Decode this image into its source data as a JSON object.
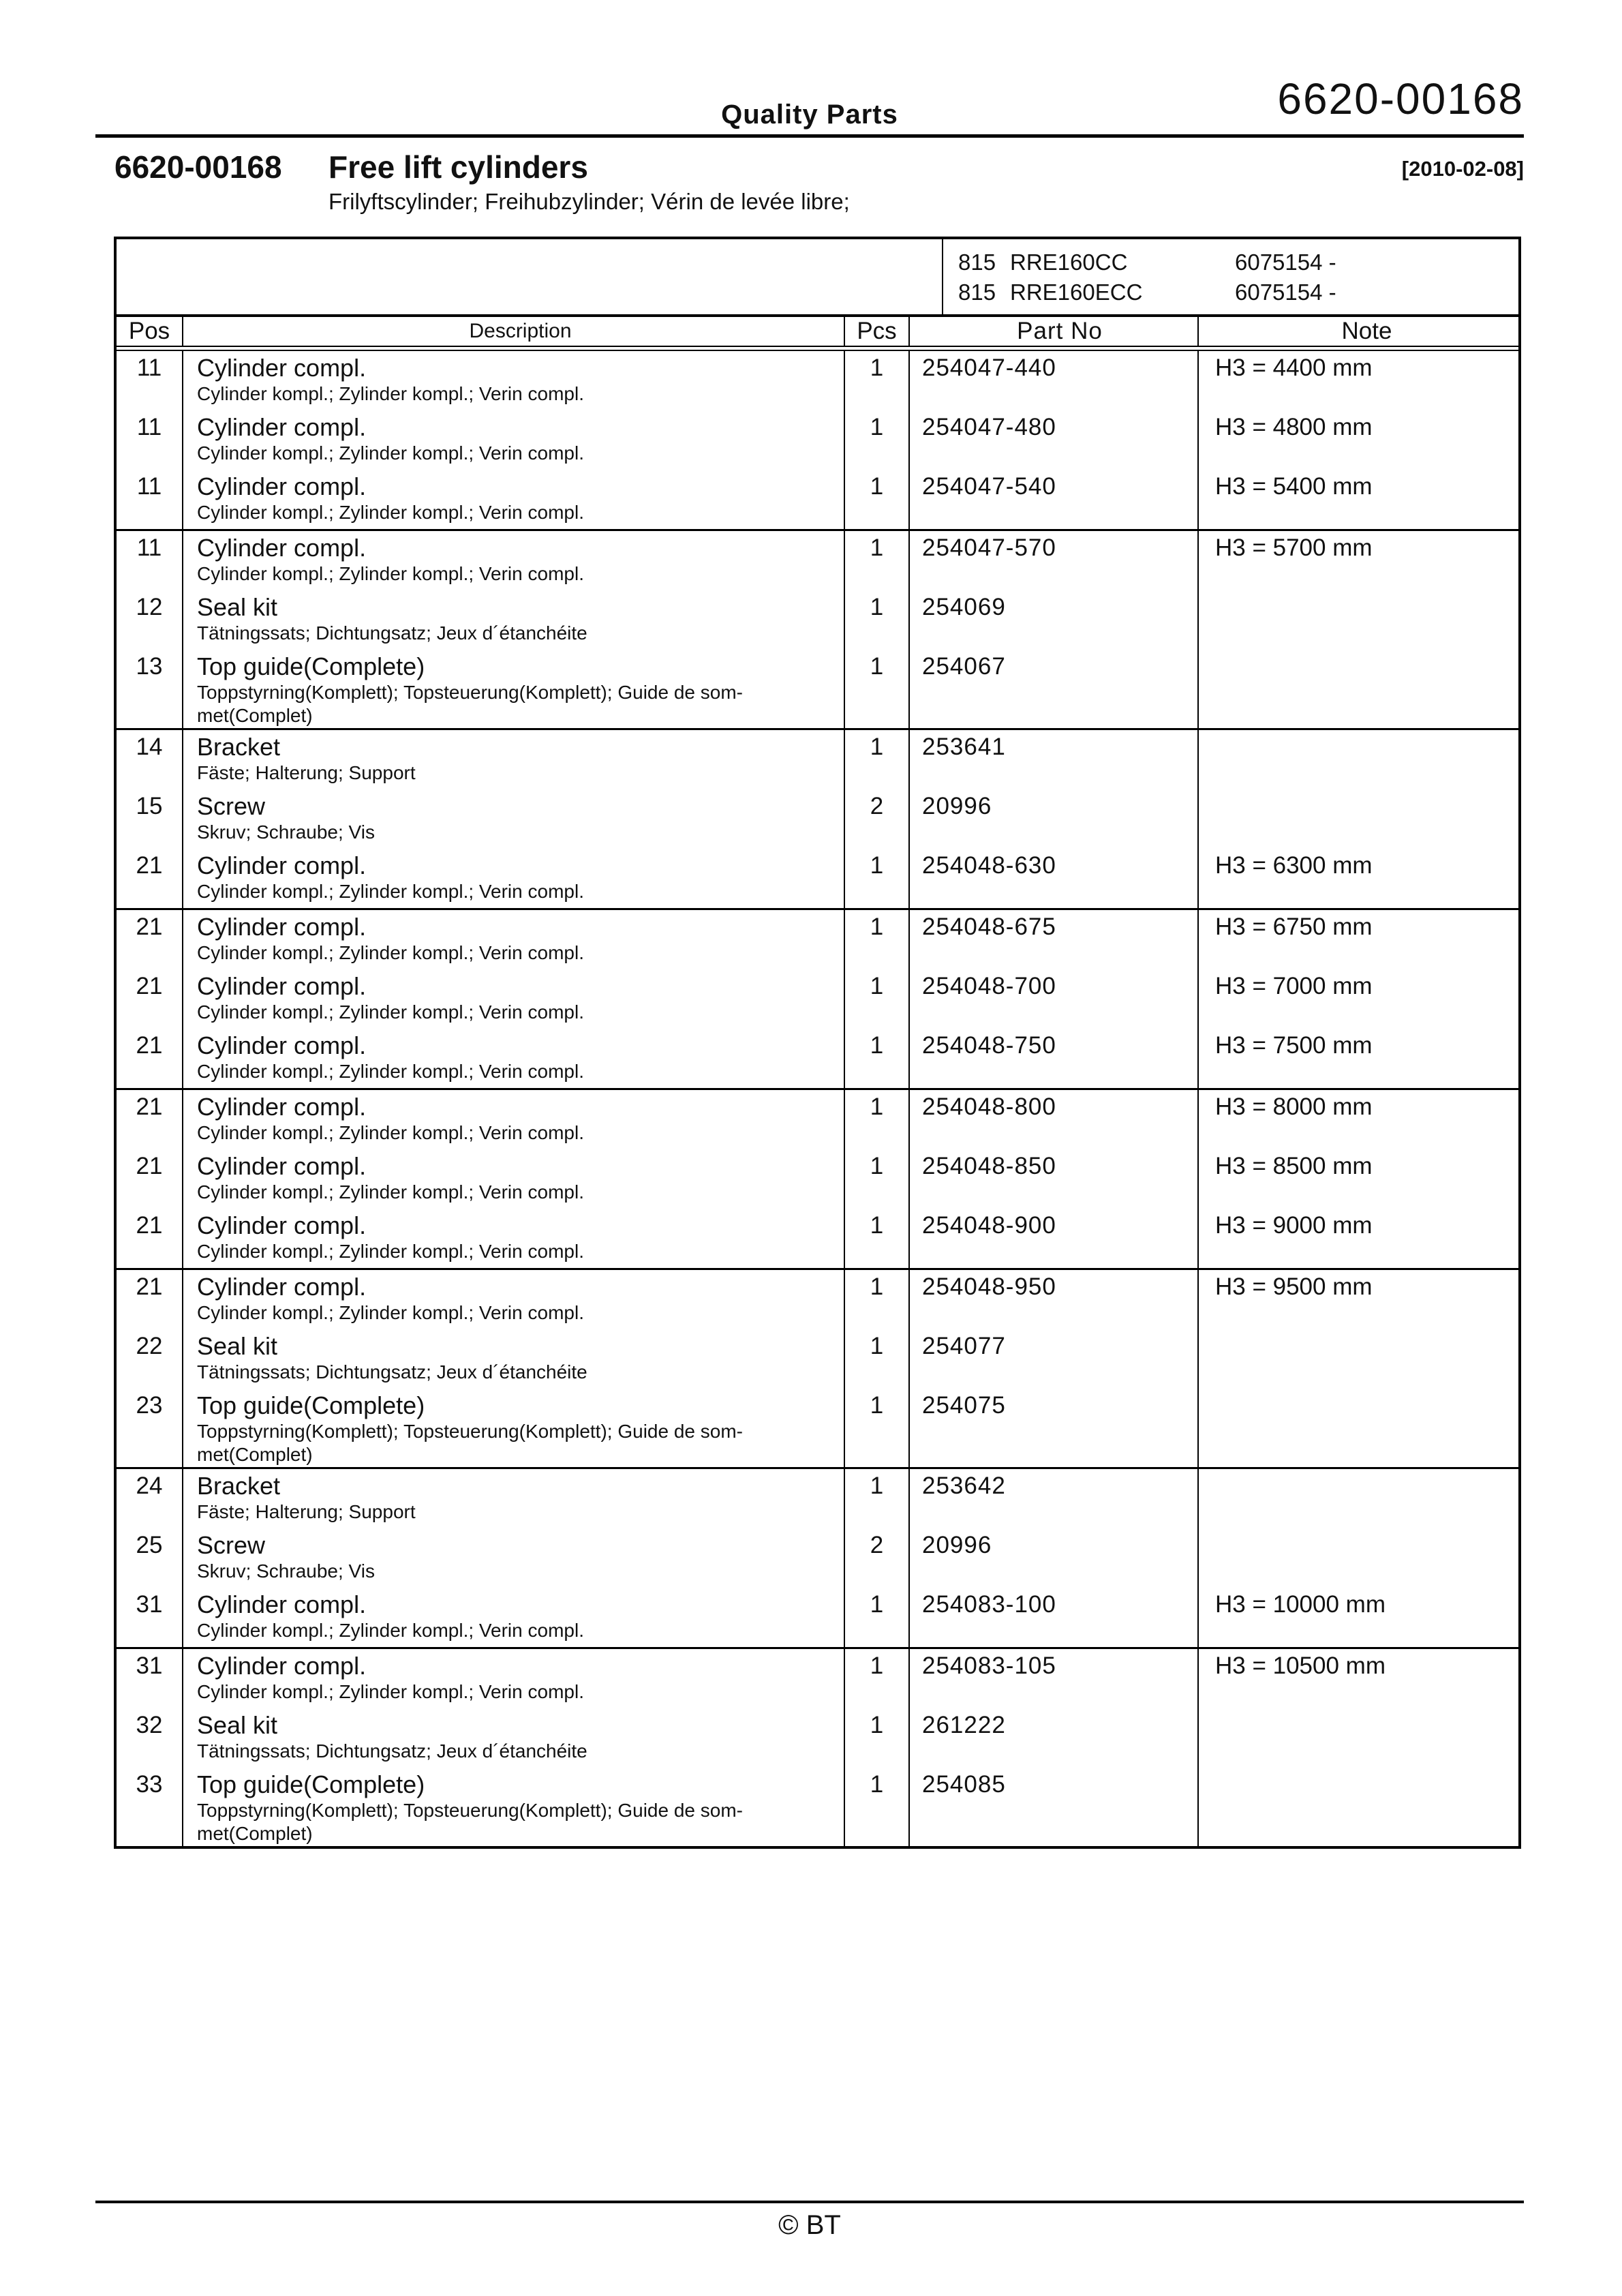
{
  "header": {
    "brand": "Quality Parts",
    "page_number": "6620-00168"
  },
  "title": {
    "doc_no": "6620-00168",
    "name": "Free lift cylinders",
    "date": "[2010-02-08]",
    "subtitle": "Frilyftscylinder; Freihubzylinder; Vérin de levée libre;"
  },
  "models": [
    {
      "code": "815",
      "name": "RRE160CC",
      "serial": "6075154 -"
    },
    {
      "code": "815",
      "name": "RRE160ECC",
      "serial": "6075154 -"
    }
  ],
  "table": {
    "columns": {
      "pos": "Pos",
      "description": "Description",
      "pcs": "Pcs",
      "part_no": "Part No",
      "note": "Note"
    },
    "groups": [
      {
        "rows": [
          {
            "pos": "11",
            "desc": "Cylinder compl.",
            "desc2": "Cylinder kompl.; Zylinder kompl.; Verin compl.",
            "pcs": "1",
            "part": "254047-440",
            "note": "H3 = 4400 mm"
          },
          {
            "pos": "11",
            "desc": "Cylinder compl.",
            "desc2": "Cylinder kompl.; Zylinder kompl.; Verin compl.",
            "pcs": "1",
            "part": "254047-480",
            "note": "H3 = 4800 mm"
          },
          {
            "pos": "11",
            "desc": "Cylinder compl.",
            "desc2": "Cylinder kompl.; Zylinder kompl.; Verin compl.",
            "pcs": "1",
            "part": "254047-540",
            "note": "H3 = 5400 mm"
          }
        ]
      },
      {
        "rows": [
          {
            "pos": "11",
            "desc": "Cylinder compl.",
            "desc2": "Cylinder kompl.; Zylinder kompl.; Verin compl.",
            "pcs": "1",
            "part": "254047-570",
            "note": "H3 = 5700 mm"
          },
          {
            "pos": "12",
            "desc": "Seal kit",
            "desc2": "Tätningssats; Dichtungsatz; Jeux d´étanchéite",
            "pcs": "1",
            "part": "254069",
            "note": ""
          },
          {
            "pos": "13",
            "desc": "Top guide(Complete)",
            "desc2": "Toppstyrning(Komplett); Topsteuerung(Komplett); Guide de som-\nmet(Complet)",
            "pcs": "1",
            "part": "254067",
            "note": "",
            "tall": true
          }
        ]
      },
      {
        "rows": [
          {
            "pos": "14",
            "desc": "Bracket",
            "desc2": "Fäste; Halterung; Support",
            "pcs": "1",
            "part": "253641",
            "note": ""
          },
          {
            "pos": "15",
            "desc": "Screw",
            "desc2": "Skruv; Schraube; Vis",
            "pcs": "2",
            "part": "20996",
            "note": ""
          },
          {
            "pos": "21",
            "desc": "Cylinder compl.",
            "desc2": "Cylinder kompl.; Zylinder kompl.; Verin compl.",
            "pcs": "1",
            "part": "254048-630",
            "note": "H3 = 6300 mm"
          }
        ]
      },
      {
        "rows": [
          {
            "pos": "21",
            "desc": "Cylinder compl.",
            "desc2": "Cylinder kompl.; Zylinder kompl.; Verin compl.",
            "pcs": "1",
            "part": "254048-675",
            "note": "H3 = 6750 mm"
          },
          {
            "pos": "21",
            "desc": "Cylinder compl.",
            "desc2": "Cylinder kompl.; Zylinder kompl.; Verin compl.",
            "pcs": "1",
            "part": "254048-700",
            "note": "H3 = 7000 mm"
          },
          {
            "pos": "21",
            "desc": "Cylinder compl.",
            "desc2": "Cylinder kompl.; Zylinder kompl.; Verin compl.",
            "pcs": "1",
            "part": "254048-750",
            "note": "H3 = 7500 mm"
          }
        ]
      },
      {
        "rows": [
          {
            "pos": "21",
            "desc": "Cylinder compl.",
            "desc2": "Cylinder kompl.; Zylinder kompl.; Verin compl.",
            "pcs": "1",
            "part": "254048-800",
            "note": "H3 = 8000 mm"
          },
          {
            "pos": "21",
            "desc": "Cylinder compl.",
            "desc2": "Cylinder kompl.; Zylinder kompl.; Verin compl.",
            "pcs": "1",
            "part": "254048-850",
            "note": "H3 = 8500 mm"
          },
          {
            "pos": "21",
            "desc": "Cylinder compl.",
            "desc2": "Cylinder kompl.; Zylinder kompl.; Verin compl.",
            "pcs": "1",
            "part": "254048-900",
            "note": "H3 = 9000 mm"
          }
        ]
      },
      {
        "rows": [
          {
            "pos": "21",
            "desc": "Cylinder compl.",
            "desc2": "Cylinder kompl.; Zylinder kompl.; Verin compl.",
            "pcs": "1",
            "part": "254048-950",
            "note": "H3 = 9500 mm"
          },
          {
            "pos": "22",
            "desc": "Seal kit",
            "desc2": "Tätningssats; Dichtungsatz; Jeux d´étanchéite",
            "pcs": "1",
            "part": "254077",
            "note": ""
          },
          {
            "pos": "23",
            "desc": "Top guide(Complete)",
            "desc2": "Toppstyrning(Komplett); Topsteuerung(Komplett); Guide de som-\nmet(Complet)",
            "pcs": "1",
            "part": "254075",
            "note": "",
            "tall": true
          }
        ]
      },
      {
        "rows": [
          {
            "pos": "24",
            "desc": "Bracket",
            "desc2": "Fäste; Halterung; Support",
            "pcs": "1",
            "part": "253642",
            "note": ""
          },
          {
            "pos": "25",
            "desc": "Screw",
            "desc2": "Skruv; Schraube; Vis",
            "pcs": "2",
            "part": "20996",
            "note": ""
          },
          {
            "pos": "31",
            "desc": "Cylinder compl.",
            "desc2": "Cylinder kompl.; Zylinder kompl.; Verin compl.",
            "pcs": "1",
            "part": "254083-100",
            "note": "H3 = 10000 mm"
          }
        ]
      },
      {
        "rows": [
          {
            "pos": "31",
            "desc": "Cylinder compl.",
            "desc2": "Cylinder kompl.; Zylinder kompl.; Verin compl.",
            "pcs": "1",
            "part": "254083-105",
            "note": "H3 = 10500 mm"
          },
          {
            "pos": "32",
            "desc": "Seal kit",
            "desc2": "Tätningssats; Dichtungsatz; Jeux d´étanchéite",
            "pcs": "1",
            "part": "261222",
            "note": ""
          },
          {
            "pos": "33",
            "desc": "Top guide(Complete)",
            "desc2": "Toppstyrning(Komplett); Topsteuerung(Komplett); Guide de som-\nmet(Complet)",
            "pcs": "1",
            "part": "254085",
            "note": "",
            "tall": true
          }
        ]
      }
    ]
  },
  "footer": {
    "copyright": "© BT"
  },
  "colors": {
    "ink": "#111111",
    "paper": "#ffffff"
  }
}
